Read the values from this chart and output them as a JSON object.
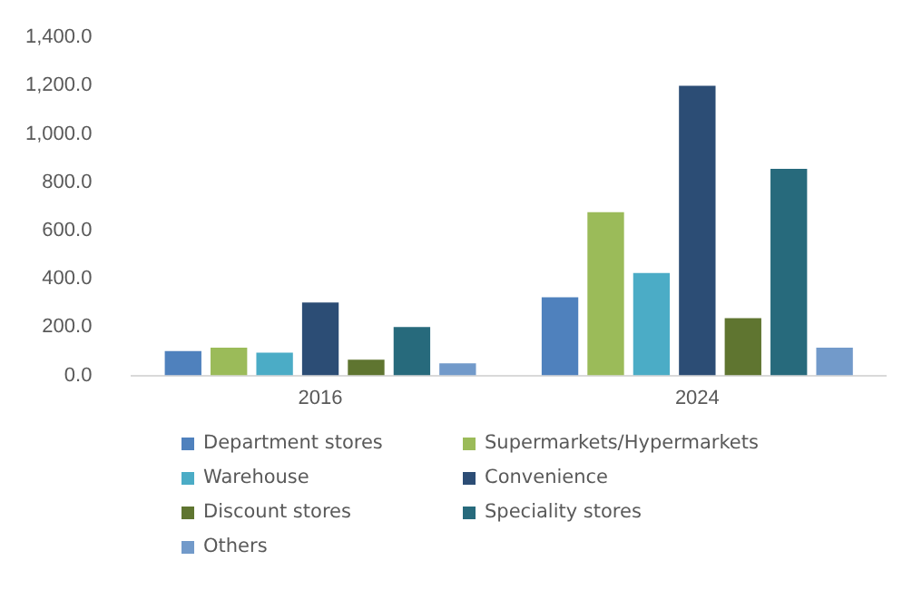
{
  "chart_data": {
    "type": "bar",
    "categories": [
      "2016",
      "2024"
    ],
    "series": [
      {
        "name": "Department stores",
        "color": "#4f81bd",
        "values": [
          101,
          324
        ]
      },
      {
        "name": "Supermarkets/Hypermarkets",
        "color": "#9bbb59",
        "values": [
          115,
          676
        ]
      },
      {
        "name": "Warehouse",
        "color": "#4bacc6",
        "values": [
          94,
          424
        ]
      },
      {
        "name": "Convenience",
        "color": "#2c4d75",
        "values": [
          302,
          1200
        ]
      },
      {
        "name": "Discount stores",
        "color": "#5f7530",
        "values": [
          65,
          237
        ]
      },
      {
        "name": "Speciality stores",
        "color": "#276a7c",
        "values": [
          201,
          856
        ]
      },
      {
        "name": "Others",
        "color": "#729aca",
        "values": [
          50,
          115
        ]
      }
    ],
    "ylim": [
      0,
      1400
    ],
    "yticks": [
      {
        "value": 0,
        "label": "0.0"
      },
      {
        "value": 200,
        "label": "200.0"
      },
      {
        "value": 400,
        "label": "400.0"
      },
      {
        "value": 600,
        "label": "600.0"
      },
      {
        "value": 800,
        "label": "800.0"
      },
      {
        "value": 1000,
        "label": "1,000.0"
      },
      {
        "value": 1200,
        "label": "1,200.0"
      },
      {
        "value": 1400,
        "label": "1,400.0"
      }
    ],
    "grid": false,
    "legend": "bottom"
  }
}
